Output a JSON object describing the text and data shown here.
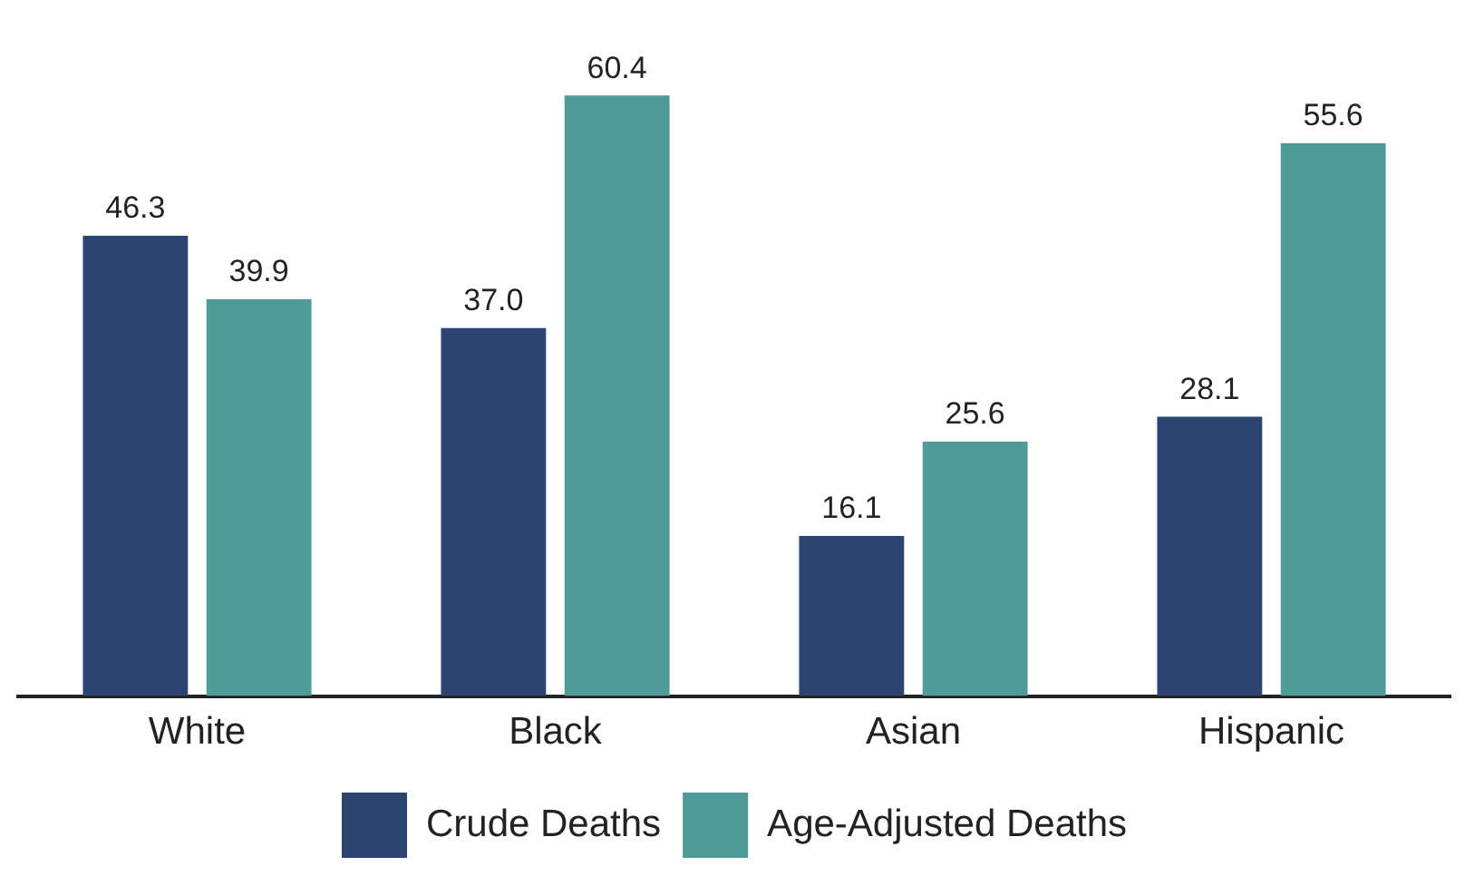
{
  "chart_data": {
    "type": "bar",
    "categories": [
      "White",
      "Black",
      "Asian",
      "Hispanic"
    ],
    "series": [
      {
        "name": "Crude Deaths",
        "color": "#2b4570",
        "values": [
          46.3,
          37.0,
          16.1,
          28.1
        ],
        "value_labels": [
          "46.3",
          "37.0",
          "16.1",
          "28.1"
        ]
      },
      {
        "name": "Age-Adjusted Deaths",
        "color": "#4e9b98",
        "values": [
          39.9,
          60.4,
          25.6,
          55.6
        ],
        "value_labels": [
          "39.9",
          "60.4",
          "25.6",
          "55.6"
        ]
      }
    ],
    "legend": "bottom",
    "grid": false,
    "tick_labels": "x"
  }
}
